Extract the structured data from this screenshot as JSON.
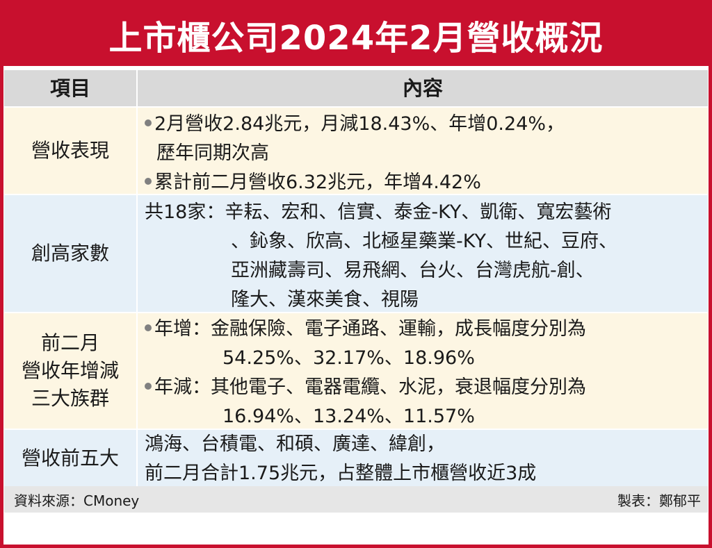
{
  "title": "上市櫃公司2024年2月營收概況",
  "header": {
    "col_item": "項目",
    "col_content": "內容"
  },
  "rows": [
    {
      "item": [
        "營收表現"
      ],
      "lines": [
        {
          "text": "2月營收2.84兆元，月減18.43%、年增0.24%，",
          "bullet": true
        },
        {
          "text": "歷年同期次高",
          "bullet": false
        },
        {
          "text": "累計前二月營收6.32兆元，年增4.42%",
          "bullet": true
        }
      ]
    },
    {
      "item": [
        "創高家數"
      ],
      "lines": [
        {
          "text": "共18家：辛耘、宏和、信實、泰金-KY、凱衛、寬宏藝術",
          "bullet": false
        },
        {
          "text": "、鈊象、欣高、北極星藥業-KY、世紀、豆府、",
          "bullet": false
        },
        {
          "text": "亞洲藏壽司、易飛網、台火、台灣虎航-創、",
          "bullet": false
        },
        {
          "text": "隆大、漢來美食、視陽",
          "bullet": false
        }
      ]
    },
    {
      "item": [
        "前二月",
        "營收年增減",
        "三大族群"
      ],
      "lines": [
        {
          "text": "年增：金融保險、電子通路、運輸，成長幅度分別為",
          "bullet": true
        },
        {
          "text": "54.25%、32.17%、18.96%",
          "bullet": false
        },
        {
          "text": "年減：其他電子、電器電纜、水泥，衰退幅度分別為",
          "bullet": true
        },
        {
          "text": "16.94%、13.24%、11.57%",
          "bullet": false
        }
      ]
    },
    {
      "item": [
        "營收前五大"
      ],
      "lines": [
        {
          "text": "鴻海、台積電、和碩、廣達、緯創，",
          "bullet": false
        },
        {
          "text": "前二月合計1.75兆元，占整體上市櫃營收近3成",
          "bullet": false
        }
      ]
    }
  ],
  "footer": {
    "source": "資料來源：CMoney",
    "author": "製表：鄭郁平"
  },
  "colors": {
    "brand_red": "#c8102e",
    "header_gray": "#d9d9d9",
    "row_cream": "#fdf6e3",
    "row_blue": "#e6f0f8"
  }
}
